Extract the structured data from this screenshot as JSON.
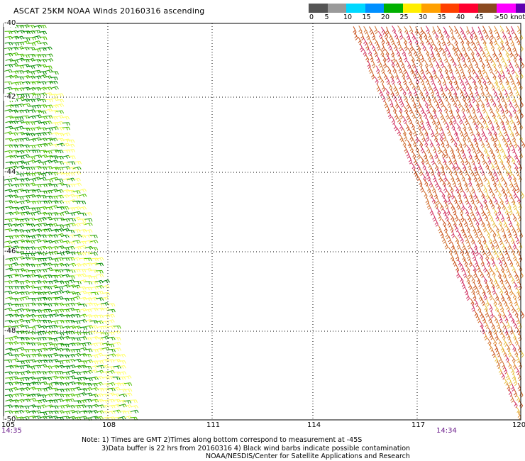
{
  "title": "ASCAT 25KM NOAA Winds 20160316 ascending",
  "color_scale": {
    "colors": [
      "#555555",
      "#9a9a9a",
      "#00d8ff",
      "#0090ff",
      "#00b000",
      "#ffee00",
      "#ffa000",
      "#ff4000",
      "#ff0030",
      "#8a4a20",
      "#ff00ff",
      "#6000b0"
    ],
    "labels": [
      "0",
      "5",
      "10",
      "15",
      "20",
      "25",
      "30",
      "35",
      "40",
      "45",
      ">50 knots"
    ]
  },
  "lat_labels": [
    "-40",
    "-42",
    "-44",
    "-46",
    "-48",
    "-50"
  ],
  "lon_labels": [
    "105",
    "108",
    "111",
    "114",
    "117",
    "120"
  ],
  "times": {
    "left": "14:35",
    "right": "14:34"
  },
  "notes": [
    "Note: 1) Times are GMT 2)Times along bottom correspond to measurement at -45S",
    "3)Data buffer is 22 hrs from 20160316 4) Black wind barbs indicate possible contamination",
    "NOAA/NESDIS/Center for Satellite Applications and Research"
  ],
  "swaths": [
    {
      "name": "west-swath",
      "speed_range_knots": "15-25",
      "colors": [
        "#008a00",
        "#22a000",
        "#4cc000",
        "#ffff66"
      ]
    },
    {
      "name": "east-swath",
      "speed_range_knots": "25-45",
      "colors": [
        "#c8501a",
        "#d07030",
        "#d03060",
        "#e08a30",
        "#e8c040"
      ]
    }
  ]
}
